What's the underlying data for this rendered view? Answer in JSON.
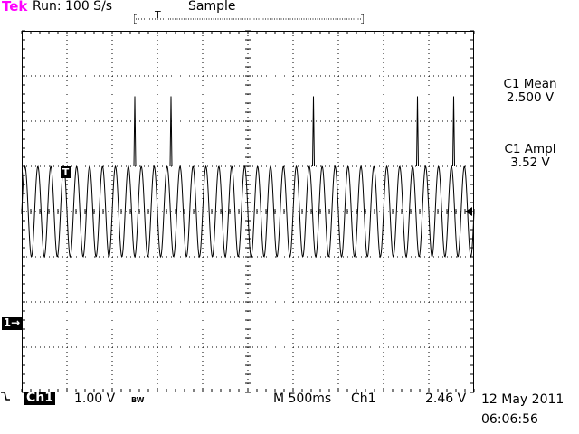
{
  "header": {
    "brand": "Tek",
    "run_status": "Run: 100 S/s",
    "acquisition_mode": "Sample",
    "trigger_position_marker": "T"
  },
  "colors": {
    "brand": "#ff00ff",
    "trace": "#000000",
    "background": "#ffffff",
    "marker_bg": "#000000"
  },
  "measurements": [
    {
      "name": "C1 Mean",
      "value": "2.500 V"
    },
    {
      "name": "C1 Ampl",
      "value": "3.52 V"
    }
  ],
  "markers": {
    "trigger_marker": "T",
    "channel_ground_marker": "1→",
    "trigger_level_icon": "trigger-level-arrow-icon"
  },
  "footer": {
    "channel": "Ch1",
    "volts_per_div": "1.00 V",
    "bandwidth_limit": "BW",
    "timebase": "M 500ms",
    "trigger_source": "Ch1",
    "trigger_slope_icon": "falling-edge-icon",
    "trigger_level": "2.46 V",
    "date": "12 May 2011",
    "time": "06:06:56"
  },
  "waveform": {
    "cycles_on_screen": 35,
    "spike_times_div": [
      2.5,
      3.3,
      6.45,
      8.75,
      9.55
    ],
    "amplitude_div": 1.0,
    "spike_height_div": 1.55
  }
}
